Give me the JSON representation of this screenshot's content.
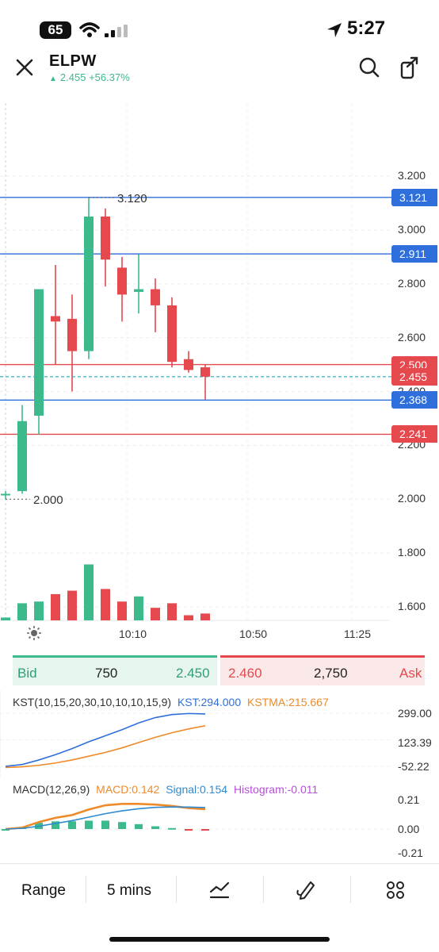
{
  "status_bar": {
    "battery": "65",
    "time": "5:27",
    "icons": [
      "wifi-icon",
      "signal-icon",
      "location-icon"
    ]
  },
  "header": {
    "symbol": "ELPW",
    "price": "2.455",
    "change": "+56.37%",
    "close_icon": "close-icon",
    "search_icon": "search-icon",
    "share_icon": "share-icon"
  },
  "colors": {
    "up": "#3dba8c",
    "down": "#e5484d",
    "blue": "#2f6fdc",
    "orange": "#ee8a2a",
    "purple": "#b54fd6"
  },
  "chart_data": [
    {
      "type": "candlestick",
      "candles": [
        {
          "o": 2.02,
          "h": 2.03,
          "l": 2.0,
          "c": 2.02
        },
        {
          "o": 2.03,
          "h": 2.35,
          "l": 2.02,
          "c": 2.29
        },
        {
          "o": 2.31,
          "h": 2.78,
          "l": 2.24,
          "c": 2.78
        },
        {
          "o": 2.68,
          "h": 2.87,
          "l": 2.5,
          "c": 2.66
        },
        {
          "o": 2.67,
          "h": 2.76,
          "l": 2.4,
          "c": 2.55
        },
        {
          "o": 2.55,
          "h": 3.12,
          "l": 2.52,
          "c": 3.05
        },
        {
          "o": 3.05,
          "h": 3.08,
          "l": 2.79,
          "c": 2.89
        },
        {
          "o": 2.86,
          "h": 2.9,
          "l": 2.66,
          "c": 2.76
        },
        {
          "o": 2.77,
          "h": 2.91,
          "l": 2.69,
          "c": 2.78
        },
        {
          "o": 2.78,
          "h": 2.82,
          "l": 2.62,
          "c": 2.72
        },
        {
          "o": 2.72,
          "h": 2.75,
          "l": 2.49,
          "c": 2.51
        },
        {
          "o": 2.52,
          "h": 2.55,
          "l": 2.47,
          "c": 2.48
        },
        {
          "o": 2.49,
          "h": 2.5,
          "l": 2.37,
          "c": 2.455
        }
      ],
      "volumes": [
        {
          "v": 0.05,
          "up": true
        },
        {
          "v": 0.3,
          "up": true
        },
        {
          "v": 0.33,
          "up": true
        },
        {
          "v": 0.46,
          "down": true
        },
        {
          "v": 0.52,
          "down": true
        },
        {
          "v": 0.98,
          "up": true
        },
        {
          "v": 0.55,
          "down": true
        },
        {
          "v": 0.33,
          "down": true
        },
        {
          "v": 0.42,
          "up": true
        },
        {
          "v": 0.22,
          "down": true
        },
        {
          "v": 0.3,
          "down": true
        },
        {
          "v": 0.09,
          "down": true
        },
        {
          "v": 0.12,
          "down": true
        }
      ],
      "y_ticks": [
        "3.200",
        "3.000",
        "2.800",
        "2.600",
        "2.400",
        "2.200",
        "2.000",
        "1.800",
        "1.600"
      ],
      "ylim": [
        1.55,
        3.3
      ],
      "x_ticks": [
        "10:10",
        "10:50",
        "11:25"
      ],
      "high_label": "3.120",
      "low_label": "2.000",
      "h_lines": [
        {
          "price": 3.121,
          "label": "3.121",
          "color": "blue"
        },
        {
          "price": 2.911,
          "label": "2.911",
          "color": "blue"
        },
        {
          "price": 2.5,
          "label": "2.500",
          "color": "red"
        },
        {
          "price": 2.455,
          "label": "2.455",
          "color": "red",
          "dashed": true
        },
        {
          "price": 2.368,
          "label": "2.368",
          "color": "blue"
        },
        {
          "price": 2.241,
          "label": "2.241",
          "color": "red"
        }
      ]
    },
    {
      "type": "line",
      "title": "KST(10,15,20,30,10,10,10,15,9)",
      "series": [
        {
          "name": "KST:294.000",
          "values": [
            -52,
            -40,
            -10,
            25,
            65,
            110,
            150,
            190,
            235,
            270,
            290,
            297,
            294
          ]
        },
        {
          "name": "KSTMA:215.667",
          "values": [
            -60,
            -55,
            -45,
            -30,
            -10,
            15,
            40,
            70,
            105,
            140,
            170,
            195,
            216
          ]
        }
      ],
      "y_ticks": [
        "299.00",
        "123.39",
        "-52.22"
      ],
      "ylim": [
        -70,
        310
      ]
    },
    {
      "type": "bar",
      "title": "MACD(12,26,9)",
      "series": [
        {
          "name": "MACD:0.142",
          "values": [
            0.0,
            0.01,
            0.05,
            0.08,
            0.1,
            0.14,
            0.17,
            0.18,
            0.18,
            0.175,
            0.165,
            0.15,
            0.142
          ]
        },
        {
          "name": "Signal:0.154",
          "values": [
            0.0,
            0.005,
            0.02,
            0.04,
            0.06,
            0.085,
            0.11,
            0.13,
            0.145,
            0.155,
            0.158,
            0.157,
            0.154
          ]
        },
        {
          "name": "Histogram:-0.011",
          "values": [
            0.0,
            0.015,
            0.045,
            0.055,
            0.055,
            0.06,
            0.06,
            0.05,
            0.035,
            0.02,
            0.007,
            -0.007,
            -0.011
          ]
        }
      ],
      "y_ticks": [
        "0.21",
        "0.00",
        "-0.21"
      ],
      "ylim": [
        -0.24,
        0.24
      ]
    }
  ],
  "orderbook": {
    "bid_label": "Bid",
    "bid_size": "750",
    "bid_price": "2.450",
    "ask_price": "2.460",
    "ask_size": "2,750",
    "ask_label": "Ask"
  },
  "toolbar": {
    "range": "Range",
    "interval": "5 mins",
    "indicators_icon": "chart-line-icon",
    "draw_icon": "pen-icon",
    "more_icon": "grid-icon"
  }
}
